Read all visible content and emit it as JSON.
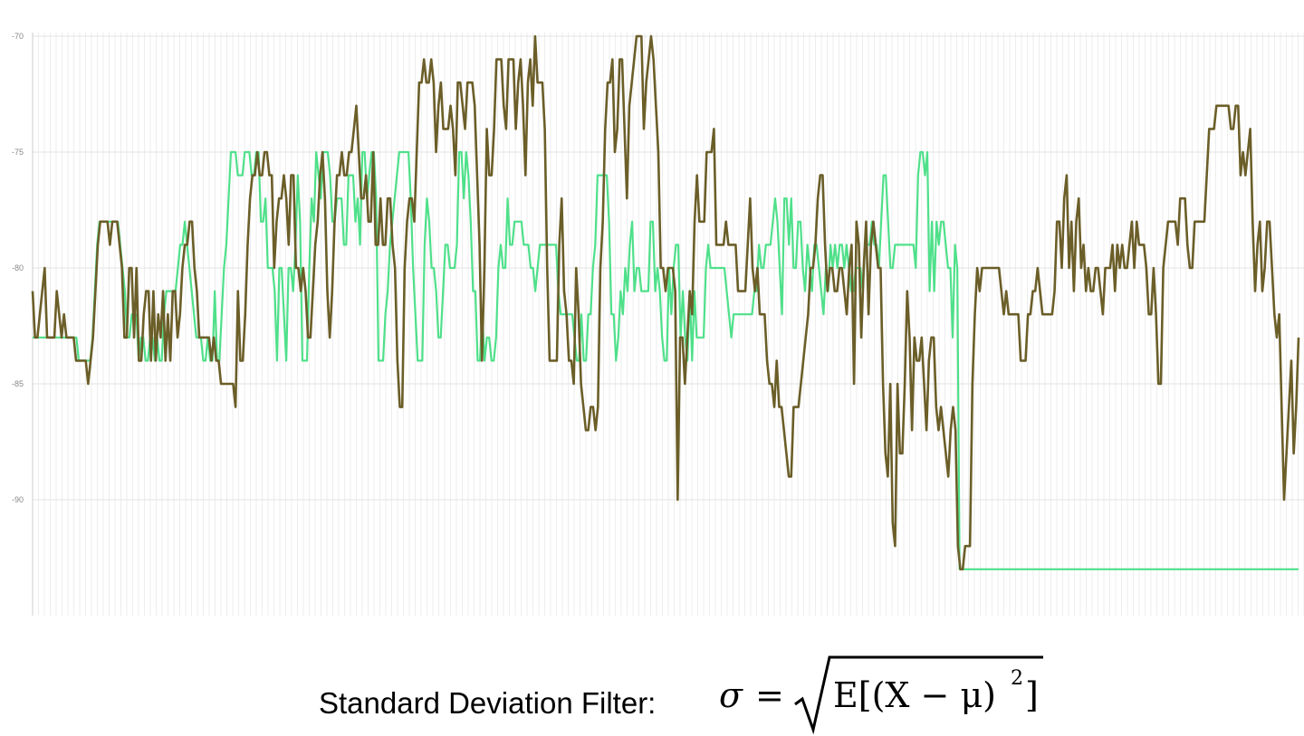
{
  "chart_data": {
    "type": "line",
    "ylim": [
      -95,
      -70
    ],
    "yticks": [
      {
        "value": -70,
        "label": "-70"
      },
      {
        "value": -75,
        "label": "-75"
      },
      {
        "value": -80,
        "label": "-80"
      },
      {
        "value": -85,
        "label": "-85"
      },
      {
        "value": -90,
        "label": "-90"
      }
    ],
    "grid": true,
    "legend": "none",
    "series": [
      {
        "color": "#6b5e28",
        "values": [
          -81,
          -83,
          -83,
          -82,
          -81,
          -80,
          -83,
          -83,
          -83,
          -83,
          -81,
          -82,
          -83,
          -82,
          -83,
          -83,
          -83,
          -83,
          -84,
          -84,
          -84,
          -84,
          -84,
          -85,
          -84,
          -83,
          -81,
          -79,
          -78,
          -78,
          -78,
          -78,
          -79,
          -78,
          -78,
          -78,
          -79,
          -80,
          -83,
          -83,
          -80,
          -80,
          -83,
          -80,
          -84,
          -84,
          -82,
          -81,
          -81,
          -84,
          -81,
          -84,
          -82,
          -83,
          -81,
          -84,
          -82,
          -84,
          -81,
          -81,
          -83,
          -82,
          -80,
          -79,
          -79,
          -78,
          -78,
          -80,
          -81,
          -83,
          -83,
          -83,
          -83,
          -83,
          -84,
          -83,
          -84,
          -84,
          -85,
          -85,
          -85,
          -85,
          -85,
          -85,
          -86,
          -81,
          -84,
          -84,
          -82,
          -79,
          -77,
          -76,
          -76,
          -75,
          -76,
          -76,
          -75,
          -75,
          -76,
          -76,
          -80,
          -78,
          -77,
          -77,
          -76,
          -77,
          -79,
          -76,
          -76,
          -80,
          -80,
          -81,
          -80,
          -81,
          -83,
          -83,
          -81,
          -79,
          -78,
          -76,
          -75,
          -77,
          -81,
          -83,
          -81,
          -78,
          -76,
          -76,
          -75,
          -76,
          -76,
          -75,
          -75,
          -74,
          -73,
          -75,
          -77,
          -77,
          -76,
          -78,
          -78,
          -75,
          -79,
          -79,
          -77,
          -79,
          -79,
          -77,
          -77,
          -79,
          -80,
          -84,
          -86,
          -86,
          -80,
          -78,
          -77,
          -77,
          -78,
          -75,
          -72,
          -72,
          -71,
          -72,
          -72,
          -71,
          -72,
          -75,
          -73,
          -72,
          -74,
          -74,
          -74,
          -73,
          -74,
          -76,
          -72,
          -72,
          -73,
          -74,
          -72,
          -72,
          -72,
          -73,
          -76,
          -79,
          -84,
          -80,
          -74,
          -76,
          -76,
          -74,
          -71,
          -71,
          -71,
          -73,
          -74,
          -71,
          -71,
          -71,
          -74,
          -72,
          -71,
          -73,
          -76,
          -72,
          -71,
          -73,
          -70,
          -72,
          -72,
          -72,
          -74,
          -80,
          -84,
          -84,
          -84,
          -84,
          -79,
          -77,
          -81,
          -82,
          -84,
          -84,
          -85,
          -80,
          -82,
          -85,
          -86,
          -87,
          -87,
          -86,
          -86,
          -87,
          -86,
          -80,
          -78,
          -74,
          -72,
          -72,
          -71,
          -75,
          -74,
          -71,
          -71,
          -74,
          -77,
          -73,
          -72,
          -71,
          -70,
          -70,
          -70,
          -74,
          -72,
          -71,
          -70,
          -71,
          -73,
          -75,
          -80,
          -80,
          -81,
          -80,
          -80,
          -80,
          -81,
          -90,
          -83,
          -83,
          -85,
          -83,
          -81,
          -82,
          -78,
          -76,
          -78,
          -78,
          -78,
          -75,
          -75,
          -75,
          -74,
          -79,
          -79,
          -79,
          -79,
          -78,
          -79,
          -79,
          -79,
          -79,
          -81,
          -81,
          -81,
          -81,
          -79,
          -77,
          -80,
          -81,
          -80,
          -82,
          -82,
          -82,
          -84,
          -85,
          -85,
          -86,
          -84,
          -86,
          -86,
          -87,
          -88,
          -89,
          -89,
          -86,
          -86,
          -86,
          -85,
          -84,
          -83,
          -82,
          -80,
          -80,
          -79,
          -77,
          -76,
          -76,
          -79,
          -81,
          -80,
          -80,
          -81,
          -81,
          -80,
          -80,
          -81,
          -82,
          -80,
          -79,
          -85,
          -78,
          -79,
          -83,
          -80,
          -78,
          -82,
          -79,
          -78,
          -79,
          -80,
          -80,
          -85,
          -88,
          -89,
          -85,
          -91,
          -92,
          -85,
          -88,
          -88,
          -85,
          -81,
          -83,
          -87,
          -83,
          -84,
          -84,
          -83,
          -85,
          -87,
          -84,
          -83,
          -83,
          -86,
          -87,
          -86,
          -87,
          -88,
          -89,
          -87,
          -86,
          -87,
          -92,
          -93,
          -93,
          -92,
          -92,
          -92,
          -85,
          -82,
          -80,
          -81,
          -80,
          -80,
          -80,
          -80,
          -80,
          -80,
          -80,
          -80,
          -81,
          -82,
          -81,
          -82,
          -82,
          -82,
          -82,
          -82,
          -84,
          -84,
          -84,
          -82,
          -82,
          -81,
          -81,
          -80,
          -81,
          -82,
          -82,
          -82,
          -82,
          -82,
          -81,
          -78,
          -78,
          -80,
          -77,
          -76,
          -80,
          -78,
          -81,
          -78,
          -77,
          -80,
          -79,
          -81,
          -80,
          -81,
          -81,
          -80,
          -80,
          -81,
          -82,
          -80,
          -80,
          -80,
          -79,
          -81,
          -79,
          -80,
          -79,
          -80,
          -80,
          -79,
          -78,
          -80,
          -78,
          -79,
          -79,
          -79,
          -80,
          -82,
          -82,
          -80,
          -82,
          -85,
          -85,
          -80,
          -79,
          -78,
          -78,
          -78,
          -78,
          -79,
          -77,
          -77,
          -77,
          -79,
          -80,
          -80,
          -78,
          -78,
          -78,
          -78,
          -78,
          -76,
          -74,
          -74,
          -74,
          -73,
          -73,
          -73,
          -73,
          -73,
          -73,
          -74,
          -74,
          -73,
          -73,
          -76,
          -75,
          -76,
          -75,
          -74,
          -78,
          -81,
          -79,
          -78,
          -81,
          -80,
          -78,
          -78,
          -80,
          -82,
          -83,
          -82,
          -86,
          -90,
          -88,
          -86,
          -84,
          -88,
          -86,
          -83
        ]
      },
      {
        "color": "#4fe08a",
        "values": [
          -83,
          -83,
          -83,
          -83,
          -83,
          -83,
          -83,
          -83,
          -83,
          -83,
          -83,
          -83,
          -83,
          -83,
          -83,
          -83,
          -83,
          -83,
          -83,
          -83,
          -84,
          -84,
          -84,
          -84,
          -84,
          -84,
          -83,
          -81,
          -79,
          -78,
          -78,
          -78,
          -78,
          -78,
          -78,
          -78,
          -78,
          -78,
          -79,
          -80,
          -81,
          -83,
          -83,
          -82,
          -82,
          -82,
          -84,
          -83,
          -83,
          -84,
          -84,
          -83,
          -83,
          -84,
          -83,
          -84,
          -84,
          -82,
          -81,
          -81,
          -81,
          -81,
          -81,
          -80,
          -79,
          -79,
          -78,
          -79,
          -80,
          -81,
          -82,
          -83,
          -83,
          -83,
          -84,
          -84,
          -83,
          -84,
          -84,
          -81,
          -84,
          -84,
          -82,
          -80,
          -79,
          -77,
          -75,
          -75,
          -75,
          -76,
          -76,
          -76,
          -75,
          -75,
          -75,
          -76,
          -76,
          -75,
          -75,
          -78,
          -78,
          -77,
          -80,
          -80,
          -80,
          -81,
          -84,
          -80,
          -80,
          -82,
          -84,
          -80,
          -80,
          -81,
          -79,
          -76,
          -78,
          -84,
          -84,
          -84,
          -80,
          -77,
          -78,
          -75,
          -76,
          -77,
          -75,
          -75,
          -75,
          -76,
          -78,
          -78,
          -77,
          -77,
          -77,
          -79,
          -79,
          -76,
          -76,
          -76,
          -78,
          -77,
          -79,
          -75,
          -75,
          -77,
          -76,
          -75,
          -75,
          -77,
          -84,
          -84,
          -84,
          -82,
          -81,
          -79,
          -78,
          -77,
          -76,
          -75,
          -75,
          -75,
          -75,
          -75,
          -77,
          -80,
          -82,
          -84,
          -84,
          -84,
          -79,
          -77,
          -78,
          -80,
          -80,
          -81,
          -83,
          -83,
          -81,
          -79,
          -79,
          -80,
          -80,
          -80,
          -79,
          -75,
          -75,
          -77,
          -75,
          -76,
          -78,
          -81,
          -81,
          -84,
          -84,
          -82,
          -84,
          -83,
          -83,
          -84,
          -84,
          -83,
          -80,
          -79,
          -80,
          -80,
          -77,
          -79,
          -79,
          -78,
          -78,
          -78,
          -78,
          -79,
          -79,
          -79,
          -80,
          -80,
          -81,
          -80,
          -79,
          -79,
          -79,
          -79,
          -79,
          -79,
          -79,
          -79,
          -81,
          -82,
          -82,
          -82,
          -82,
          -82,
          -82,
          -83,
          -84,
          -84,
          -82,
          -84,
          -84,
          -82,
          -82,
          -80,
          -79,
          -76,
          -76,
          -76,
          -76,
          -76,
          -78,
          -82,
          -82,
          -84,
          -83,
          -81,
          -82,
          -80,
          -81,
          -79,
          -78,
          -81,
          -80,
          -80,
          -81,
          -81,
          -81,
          -81,
          -78,
          -78,
          -81,
          -80,
          -81,
          -83,
          -84,
          -84,
          -80,
          -82,
          -80,
          -79,
          -79,
          -83,
          -81,
          -83,
          -84,
          -81,
          -84,
          -81,
          -83,
          -83,
          -83,
          -83,
          -80,
          -79,
          -80,
          -80,
          -80,
          -80,
          -80,
          -80,
          -80,
          -81,
          -82,
          -83,
          -82,
          -82,
          -82,
          -82,
          -82,
          -82,
          -82,
          -82,
          -82,
          -81,
          -81,
          -79,
          -80,
          -80,
          -79,
          -79,
          -79,
          -78,
          -77,
          -78,
          -80,
          -82,
          -77,
          -77,
          -79,
          -77,
          -80,
          -80,
          -78,
          -78,
          -80,
          -81,
          -79,
          -80,
          -81,
          -79,
          -79,
          -80,
          -81,
          -82,
          -80,
          -81,
          -79,
          -80,
          -79,
          -80,
          -79,
          -79,
          -80,
          -79,
          -80,
          -81,
          -81,
          -80,
          -80,
          -80,
          -81,
          -79,
          -79,
          -79,
          -78,
          -79,
          -79,
          -80,
          -78,
          -76,
          -76,
          -78,
          -80,
          -80,
          -79,
          -79,
          -79,
          -79,
          -79,
          -79,
          -79,
          -79,
          -79,
          -80,
          -76,
          -75,
          -75,
          -76,
          -75,
          -81,
          -78,
          -81,
          -78,
          -79,
          -78,
          -78,
          -79,
          -80,
          -80,
          -83,
          -79,
          -80,
          -93,
          -93,
          -93,
          -93,
          -93,
          -93,
          -93,
          -93,
          -93,
          -93,
          -93,
          -93,
          -93,
          -93,
          -93,
          -93,
          -93,
          -93,
          -93,
          -93,
          -93,
          -93,
          -93,
          -93,
          -93,
          -93,
          -93,
          -93,
          -93,
          -93,
          -93,
          -93,
          -93,
          -93,
          -93,
          -93,
          -93,
          -93,
          -93,
          -93,
          -93,
          -93,
          -93,
          -93,
          -93,
          -93,
          -93,
          -93,
          -93,
          -93,
          -93,
          -93,
          -93,
          -93,
          -93,
          -93,
          -93,
          -93,
          -93,
          -93,
          -93,
          -93,
          -93,
          -93,
          -93,
          -93,
          -93,
          -93,
          -93,
          -93,
          -93,
          -93,
          -93,
          -93,
          -93,
          -93,
          -93,
          -93,
          -93,
          -93,
          -93,
          -93,
          -93,
          -93,
          -93,
          -93,
          -93,
          -93,
          -93,
          -93,
          -93,
          -93,
          -93,
          -93,
          -93,
          -93,
          -93,
          -93,
          -93,
          -93,
          -93,
          -93,
          -93,
          -93,
          -93,
          -93,
          -93,
          -93,
          -93,
          -93,
          -93,
          -93,
          -93,
          -93,
          -93,
          -93,
          -93,
          -93,
          -93,
          -93,
          -93,
          -93,
          -93,
          -93,
          -93,
          -93,
          -93,
          -93,
          -93,
          -93,
          -93,
          -93,
          -93,
          -93,
          -93,
          -93,
          -93,
          -93,
          -93,
          -93,
          -93,
          -93,
          -93,
          -93,
          -93,
          -93,
          -93,
          -93
        ]
      }
    ]
  },
  "caption": {
    "text": "Standard Deviation Filter:",
    "formula_sigma": "σ",
    "formula_equals": "=",
    "formula_body": "E[(X − μ)",
    "formula_exponent": "2",
    "formula_close": "]"
  }
}
